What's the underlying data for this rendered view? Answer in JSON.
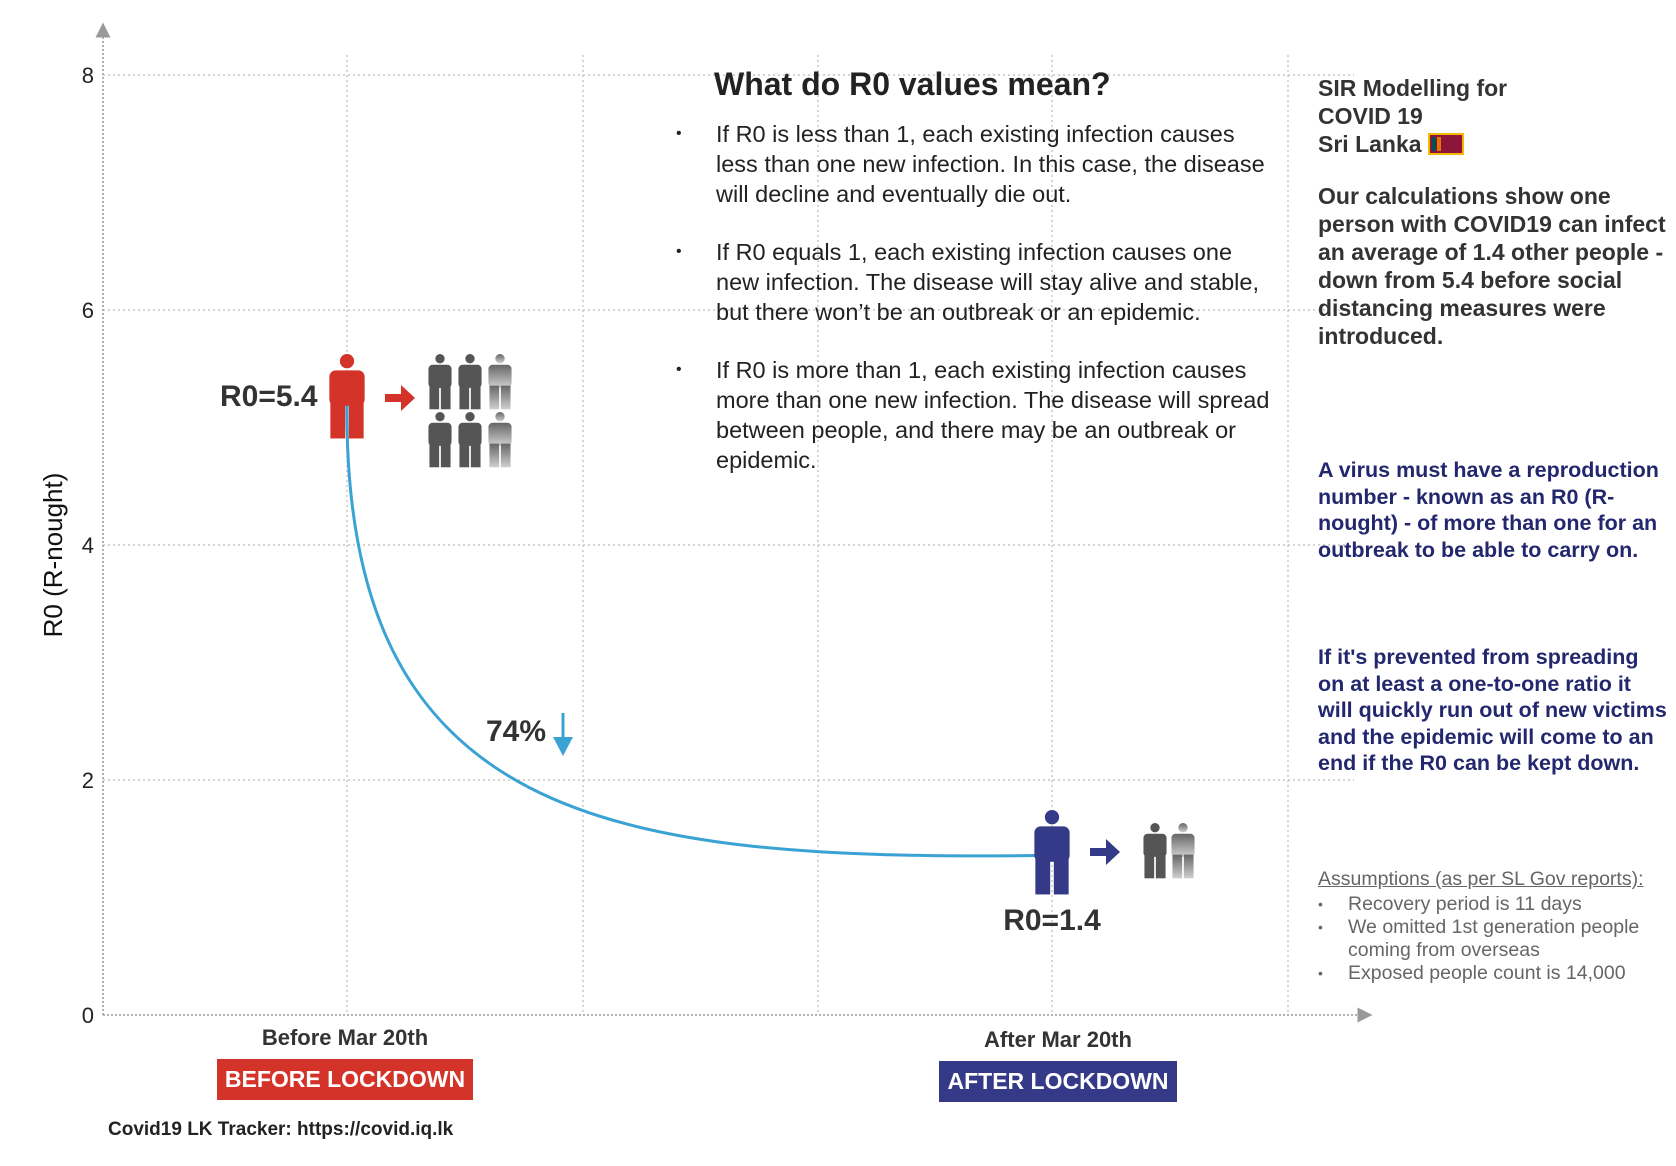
{
  "chart_data": {
    "type": "line",
    "title": "",
    "ylabel": "R0 (R-nought)",
    "xlabel": "",
    "ylim": [
      0,
      8
    ],
    "yticks": [
      0,
      2,
      4,
      6,
      8
    ],
    "grid": true,
    "categories": [
      "Before Mar 20th",
      "After Mar 20th"
    ],
    "series": [
      {
        "values": [
          5.4,
          1.4
        ],
        "color": "#3ba3d4"
      }
    ],
    "annotations": {
      "before_r0": "R0=5.4",
      "after_r0": "R0=1.4",
      "change": "74%",
      "before_badge": "BEFORE LOCKDOWN",
      "after_badge": "AFTER LOCKDOWN"
    },
    "colors": {
      "before": "#d4332a",
      "after": "#353a88",
      "curve": "#3ba3d4",
      "people": "#555555"
    }
  },
  "info": {
    "title": "What do R0 values mean?",
    "bullets": [
      "If R0 is less than 1, each existing infection causes less than one new infection. In this case, the disease will decline and eventually die out.",
      "If R0 equals 1, each existing infection causes one new infection. The disease will stay alive and stable, but there won’t be an outbreak or an epidemic.",
      "If R0 is more than 1, each existing infection causes more than one new infection. The disease will spread between people, and there may be an outbreak or epidemic."
    ]
  },
  "side": {
    "title_line1": "SIR Modelling for",
    "title_line2": "COVID 19",
    "title_line3": "Sri Lanka",
    "summary": "Our calculations show one person with COVID19 can infect an average of 1.4 other people - down from 5.4 before social distancing measures were introduced.",
    "blue1": "A virus must have a reproduction number - known as an R0 (R-nought) - of more than one for an outbreak to be able to carry on.",
    "blue2": "If it's prevented from spreading on at least a one-to-one ratio it will quickly run out of new victims and the epidemic will come to an end if the R0 can be kept down."
  },
  "assumptions": {
    "title": "Assumptions (as per SL Gov reports):",
    "items": [
      "Recovery period is 11 days",
      "We omitted 1st generation people coming from overseas",
      "Exposed people count is 14,000"
    ]
  },
  "footer": "Covid19 LK Tracker: https://covid.iq.lk"
}
